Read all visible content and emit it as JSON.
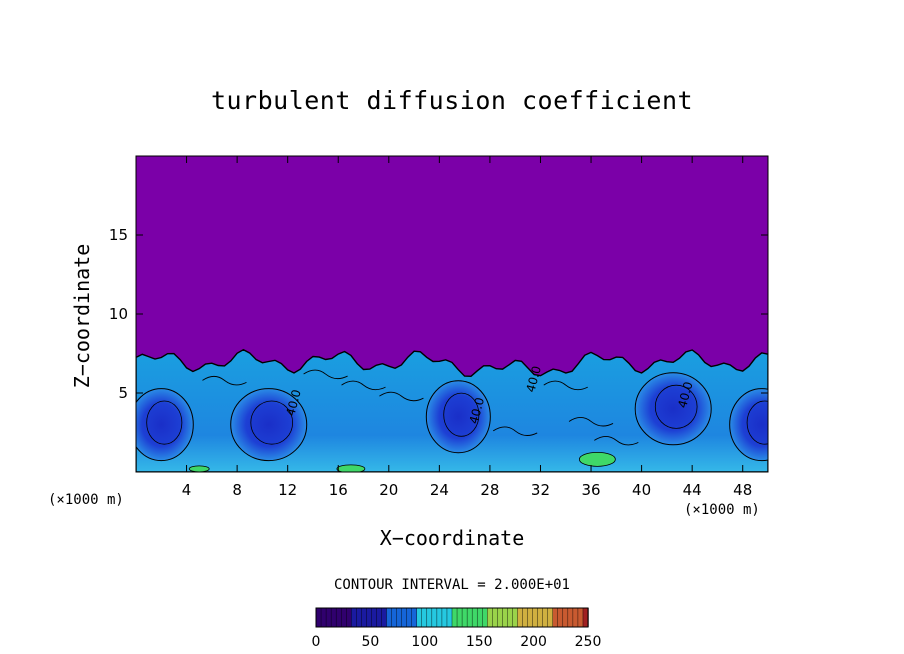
{
  "chart_data": {
    "type": "heatmap",
    "title": "turbulent diffusion coefficient",
    "xlabel": "X−coordinate",
    "ylabel": "Z−coordinate",
    "x_unit_left": "(×1000 m)",
    "x_unit_right": "(×1000 m)",
    "xlim": [
      0,
      50
    ],
    "ylim": [
      0,
      20
    ],
    "x_ticks": [
      4,
      8,
      12,
      16,
      20,
      24,
      28,
      32,
      36,
      40,
      44,
      48
    ],
    "y_ticks": [
      5,
      10,
      15
    ],
    "field_top_km": 7,
    "contour_interval_text": "CONTOUR INTERVAL = 2.000E+01",
    "contour_labels": [
      {
        "x": 12.5,
        "z": 3.5,
        "text": "40.0"
      },
      {
        "x": 27.0,
        "z": 3.0,
        "text": "40.0"
      },
      {
        "x": 31.5,
        "z": 5.0,
        "text": "40.0"
      },
      {
        "x": 43.5,
        "z": 4.0,
        "text": "40.0"
      }
    ],
    "eddies": [
      {
        "x": 2.0,
        "z": 3.0
      },
      {
        "x": 10.5,
        "z": 3.0
      },
      {
        "x": 25.5,
        "z": 3.5
      },
      {
        "x": 42.5,
        "z": 4.0
      },
      {
        "x": 49.5,
        "z": 3.0
      }
    ],
    "colorbar": {
      "min": 0,
      "max": 250,
      "ticks": [
        0,
        50,
        100,
        150,
        200,
        250
      ],
      "colors": [
        "#30006e",
        "#1a1aa0",
        "#1565d8",
        "#25c8e0",
        "#3fd868",
        "#9ad34a",
        "#d0b040",
        "#c85a30",
        "#a02020"
      ]
    },
    "background_color": "#7b00a8"
  }
}
